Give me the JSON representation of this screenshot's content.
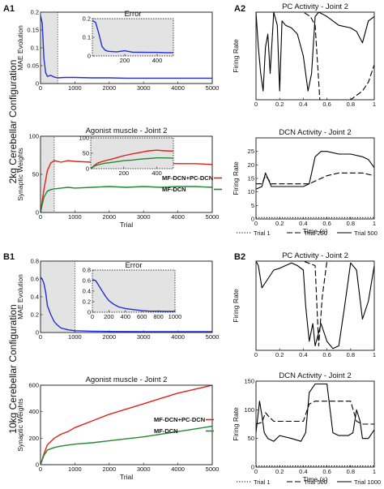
{
  "figure": {
    "labels": {
      "A1": "A1",
      "A2": "A2",
      "B1": "B1",
      "B2": "B2"
    },
    "configs": {
      "top": "2kg Cerebellar Configuration",
      "bottom": "10kg Cerebellar Configuration"
    }
  },
  "chart_data": [
    {
      "id": "A1-error",
      "type": "line",
      "title": "",
      "xlabel": "",
      "ylabel": "MAE Evolution",
      "xlim": [
        0,
        5000
      ],
      "ylim": [
        0,
        0.2
      ],
      "xticks": [
        0,
        1000,
        2000,
        3000,
        4000,
        5000
      ],
      "yticks": [
        0,
        0.05,
        0.1,
        0.15,
        0.2
      ],
      "highlight": [
        0,
        500
      ],
      "series": [
        {
          "name": "",
          "color": "#1f2fd6",
          "x": [
            0,
            50,
            100,
            150,
            200,
            300,
            400,
            500,
            700,
            1000,
            1500,
            2000,
            2500,
            3000,
            3500,
            4000,
            4500,
            5000
          ],
          "y": [
            0.19,
            0.17,
            0.07,
            0.03,
            0.02,
            0.023,
            0.018,
            0.016,
            0.017,
            0.017,
            0.016,
            0.016,
            0.015,
            0.015,
            0.015,
            0.015,
            0.015,
            0.015
          ]
        }
      ]
    },
    {
      "id": "A1-error-inset",
      "type": "line",
      "title": "Error",
      "xlim": [
        0,
        500
      ],
      "ylim": [
        0,
        0.2
      ],
      "xticks": [
        200,
        400
      ],
      "yticks": [
        0,
        0.1,
        0.2
      ],
      "series": [
        {
          "name": "",
          "color": "#1f2fd6",
          "x": [
            0,
            20,
            40,
            60,
            80,
            100,
            150,
            200,
            250,
            300,
            350,
            400,
            450,
            500
          ],
          "y": [
            0.19,
            0.18,
            0.12,
            0.05,
            0.03,
            0.025,
            0.022,
            0.028,
            0.02,
            0.02,
            0.019,
            0.019,
            0.018,
            0.018
          ]
        }
      ]
    },
    {
      "id": "A1-weights",
      "type": "line",
      "title": "Agonist muscle  - Joint 2",
      "xlabel": "Trial",
      "ylabel": "Synaptic Weights",
      "xlim": [
        0,
        5000
      ],
      "ylim": [
        0,
        100
      ],
      "xticks": [
        0,
        1000,
        2000,
        3000,
        4000,
        5000
      ],
      "yticks": [
        0,
        50,
        100
      ],
      "highlight": [
        0,
        400
      ],
      "series": [
        {
          "name": "MF-DCN+PC-DCN",
          "color": "#e0201b",
          "x": [
            0,
            100,
            200,
            300,
            400,
            600,
            800,
            1000,
            1500,
            2000,
            2500,
            3000,
            3500,
            4000,
            4500,
            5000
          ],
          "y": [
            0,
            30,
            55,
            65,
            68,
            66,
            68,
            67,
            66,
            66,
            67,
            66,
            65,
            64,
            64,
            63
          ]
        },
        {
          "name": "MF-DCN",
          "color": "#1f8a2f",
          "x": [
            0,
            100,
            200,
            300,
            400,
            600,
            800,
            1000,
            1500,
            2000,
            2500,
            3000,
            3500,
            4000,
            4500,
            5000
          ],
          "y": [
            0,
            20,
            28,
            30,
            31,
            32,
            33,
            32,
            33,
            34,
            33,
            34,
            33,
            34,
            34,
            33
          ]
        }
      ]
    },
    {
      "id": "A1-weights-inset",
      "type": "line",
      "xlim": [
        0,
        500
      ],
      "ylim": [
        0,
        100
      ],
      "xticks": [
        200,
        400
      ],
      "yticks": [
        0,
        50,
        100
      ],
      "series": [
        {
          "name": "",
          "color": "#e0201b",
          "x": [
            0,
            20,
            40,
            80,
            120,
            160,
            200,
            250,
            300,
            350,
            400,
            450,
            500
          ],
          "y": [
            0,
            10,
            18,
            25,
            30,
            36,
            42,
            48,
            53,
            58,
            60,
            58,
            57
          ]
        },
        {
          "name": "",
          "color": "#1f8a2f",
          "x": [
            0,
            20,
            40,
            80,
            120,
            160,
            200,
            250,
            300,
            350,
            400,
            450,
            500
          ],
          "y": [
            0,
            8,
            12,
            17,
            20,
            23,
            26,
            28,
            31,
            33,
            35,
            35,
            34
          ]
        }
      ]
    },
    {
      "id": "A2-pc",
      "type": "line",
      "title": "PC Activity - Joint 2",
      "ylabel": "Firing Rate",
      "xlim": [
        0,
        1
      ],
      "ylim": [
        0,
        1
      ],
      "xticks": [
        0,
        0.2,
        0.4,
        0.6,
        0.8,
        1
      ],
      "yticks": [],
      "series": [
        {
          "name": "Trial 1",
          "color": "#000",
          "dash": "1.2,2",
          "x": [
            0,
            1
          ],
          "y": [
            1,
            1
          ]
        },
        {
          "name": "Trial 250",
          "color": "#000",
          "dash": "7,3",
          "x": [
            0,
            0.1,
            0.18,
            0.22,
            0.3,
            0.4,
            0.46,
            0.5,
            0.54,
            0.6,
            0.7,
            0.8,
            0.9,
            0.95,
            1
          ],
          "y": [
            1,
            1,
            1,
            1,
            1,
            1,
            0.95,
            0.85,
            0,
            0,
            0,
            0,
            0.1,
            0.2,
            0.4
          ]
        },
        {
          "name": "Trial 500",
          "color": "#000",
          "dash": "",
          "x": [
            0,
            0.02,
            0.04,
            0.06,
            0.08,
            0.1,
            0.12,
            0.15,
            0.18,
            0.2,
            0.22,
            0.25,
            0.3,
            0.35,
            0.4,
            0.44,
            0.47,
            0.5,
            0.53,
            0.56,
            0.6,
            0.7,
            0.8,
            0.85,
            0.9,
            0.95,
            1
          ],
          "y": [
            1,
            0.6,
            0.3,
            0.1,
            0.6,
            0.75,
            0.3,
            1,
            0.85,
            0.1,
            0.9,
            0.85,
            0.82,
            0.75,
            0.5,
            0.1,
            0.3,
            0.95,
            1,
            0.98,
            0.95,
            0.85,
            0.82,
            0.78,
            0.65,
            0.9,
            0.95
          ]
        }
      ]
    },
    {
      "id": "A2-dcn",
      "type": "line",
      "title": "DCN Activity - Joint 2",
      "xlabel": "Time (s)",
      "ylabel": "Firing Rate",
      "xlim": [
        0,
        1
      ],
      "ylim": [
        0,
        30
      ],
      "xticks": [
        0,
        0.2,
        0.4,
        0.6,
        0.8,
        1
      ],
      "yticks": [
        0,
        5,
        10,
        15,
        20,
        25
      ],
      "series": [
        {
          "name": "Trial 1",
          "color": "#000",
          "dash": "1.2,2",
          "x": [
            0,
            1
          ],
          "y": [
            0.5,
            0.5
          ]
        },
        {
          "name": "Trial 250",
          "color": "#000",
          "dash": "7,3",
          "x": [
            0,
            0.05,
            0.08,
            0.1,
            0.13,
            0.2,
            0.3,
            0.4,
            0.45,
            0.5,
            0.6,
            0.7,
            0.8,
            0.9,
            1
          ],
          "y": [
            13,
            13,
            16,
            15,
            13,
            13,
            13,
            13,
            13,
            14,
            16,
            17,
            17,
            17,
            16
          ]
        },
        {
          "name": "Trial 500",
          "color": "#000",
          "dash": "",
          "x": [
            0,
            0.05,
            0.08,
            0.1,
            0.13,
            0.2,
            0.3,
            0.4,
            0.45,
            0.5,
            0.55,
            0.6,
            0.7,
            0.8,
            0.9,
            0.95,
            1
          ],
          "y": [
            11,
            12,
            17,
            15,
            12,
            12,
            12,
            12,
            13,
            23,
            25,
            25,
            24,
            24,
            23,
            22,
            19
          ]
        }
      ]
    },
    {
      "id": "B1-error",
      "type": "line",
      "title": "",
      "ylabel": "MAE Evolution",
      "xlim": [
        0,
        5000
      ],
      "ylim": [
        0,
        0.8
      ],
      "xticks": [
        0,
        1000,
        2000,
        3000,
        4000,
        5000
      ],
      "yticks": [
        0,
        0.2,
        0.4,
        0.6,
        0.8
      ],
      "highlight": [
        0,
        1000
      ],
      "series": [
        {
          "name": "",
          "color": "#1f2fd6",
          "x": [
            0,
            50,
            100,
            150,
            200,
            300,
            400,
            500,
            600,
            800,
            1000,
            1500,
            2000,
            3000,
            4000,
            5000
          ],
          "y": [
            0.62,
            0.6,
            0.55,
            0.45,
            0.3,
            0.2,
            0.12,
            0.08,
            0.05,
            0.03,
            0.02,
            0.015,
            0.012,
            0.01,
            0.01,
            0.01
          ]
        }
      ]
    },
    {
      "id": "B1-error-inset",
      "type": "line",
      "title": "Error",
      "xlim": [
        0,
        1000
      ],
      "ylim": [
        0,
        0.8
      ],
      "xticks": [
        0,
        200,
        400,
        600,
        800,
        1000
      ],
      "yticks": [
        0,
        0.2,
        0.4,
        0.6,
        0.8
      ],
      "series": [
        {
          "name": "",
          "color": "#1f2fd6",
          "x": [
            0,
            40,
            80,
            120,
            160,
            200,
            260,
            320,
            400,
            500,
            600,
            700,
            800,
            900,
            1000
          ],
          "y": [
            0.62,
            0.6,
            0.5,
            0.4,
            0.3,
            0.22,
            0.15,
            0.1,
            0.07,
            0.05,
            0.03,
            0.02,
            0.02,
            0.015,
            0.015
          ]
        }
      ]
    },
    {
      "id": "B1-weights",
      "type": "line",
      "title": "Agonist muscle  - Joint 2",
      "xlabel": "Trial",
      "ylabel": "Synaptic Weights",
      "xlim": [
        0,
        5000
      ],
      "ylim": [
        0,
        600
      ],
      "xticks": [
        0,
        1000,
        2000,
        3000,
        4000,
        5000
      ],
      "yticks": [
        0,
        200,
        400,
        600
      ],
      "series": [
        {
          "name": "MF-DCN+PC-DCN",
          "color": "#e0201b",
          "x": [
            0,
            100,
            200,
            400,
            600,
            800,
            1000,
            1500,
            2000,
            2500,
            3000,
            3500,
            4000,
            4500,
            5000
          ],
          "y": [
            0,
            80,
            150,
            200,
            230,
            250,
            280,
            330,
            380,
            420,
            460,
            500,
            540,
            570,
            600
          ]
        },
        {
          "name": "MF-DCN",
          "color": "#1f8a2f",
          "x": [
            0,
            100,
            200,
            400,
            600,
            800,
            1000,
            1500,
            2000,
            2500,
            3000,
            3500,
            4000,
            4500,
            5000
          ],
          "y": [
            0,
            70,
            110,
            130,
            140,
            148,
            155,
            165,
            180,
            195,
            210,
            230,
            250,
            270,
            290
          ]
        }
      ]
    },
    {
      "id": "B2-pc",
      "type": "line",
      "title": "PC Activity - Joint 2",
      "ylabel": "Firing Rate",
      "xlim": [
        0,
        1
      ],
      "ylim": [
        0,
        1
      ],
      "xticks": [
        0,
        0.2,
        0.4,
        0.6,
        0.8,
        1
      ],
      "yticks": [],
      "series": [
        {
          "name": "Trial 1",
          "color": "#000",
          "dash": "1.2,2",
          "x": [
            0,
            1
          ],
          "y": [
            1,
            1
          ]
        },
        {
          "name": "Trial 500",
          "color": "#000",
          "dash": "7,3",
          "x": [
            0,
            0.1,
            0.2,
            0.3,
            0.4,
            0.5,
            0.53,
            0.56,
            0.6,
            0.7,
            0.8,
            0.9,
            1
          ],
          "y": [
            1,
            1,
            1,
            1,
            1,
            0.95,
            0.05,
            0.6,
            1,
            1,
            1,
            1,
            1
          ]
        },
        {
          "name": "Trial 1000",
          "color": "#000",
          "dash": "",
          "x": [
            0,
            0.02,
            0.05,
            0.1,
            0.15,
            0.2,
            0.25,
            0.3,
            0.35,
            0.4,
            0.42,
            0.45,
            0.48,
            0.5,
            0.55,
            0.6,
            0.65,
            0.7,
            0.75,
            0.8,
            0.85,
            0.9,
            0.95,
            1
          ],
          "y": [
            1,
            0.95,
            0.7,
            0.8,
            0.9,
            0.92,
            0.95,
            0.98,
            0.95,
            0.9,
            0.5,
            0.1,
            0.3,
            0.05,
            0.3,
            0.1,
            0.02,
            0.05,
            0.5,
            0.98,
            0.9,
            0.35,
            0.55,
            0.95
          ]
        }
      ]
    },
    {
      "id": "B2-dcn",
      "type": "line",
      "title": "DCN Activity - Joint 2",
      "xlabel": "Time (s)",
      "ylabel": "Firing Rate",
      "xlim": [
        0,
        1
      ],
      "ylim": [
        0,
        150
      ],
      "xticks": [
        0,
        0.2,
        0.4,
        0.6,
        0.8,
        1
      ],
      "yticks": [
        0,
        50,
        100,
        150
      ],
      "series": [
        {
          "name": "Trial 1",
          "color": "#000",
          "dash": "1.2,2",
          "x": [
            0,
            1
          ],
          "y": [
            2,
            2
          ]
        },
        {
          "name": "Trial 500",
          "color": "#000",
          "dash": "7,3",
          "x": [
            0,
            0.05,
            0.08,
            0.1,
            0.15,
            0.2,
            0.3,
            0.4,
            0.45,
            0.5,
            0.6,
            0.7,
            0.8,
            0.85,
            0.9,
            1
          ],
          "y": [
            75,
            78,
            95,
            90,
            80,
            80,
            80,
            80,
            110,
            115,
            115,
            115,
            115,
            80,
            75,
            75
          ]
        },
        {
          "name": "Trial 1000",
          "color": "#000",
          "dash": "",
          "x": [
            0,
            0.03,
            0.05,
            0.07,
            0.1,
            0.15,
            0.2,
            0.3,
            0.38,
            0.42,
            0.45,
            0.5,
            0.55,
            0.6,
            0.65,
            0.7,
            0.78,
            0.82,
            0.85,
            0.88,
            0.9,
            0.95,
            1
          ],
          "y": [
            60,
            115,
            90,
            60,
            50,
            45,
            55,
            50,
            45,
            60,
            130,
            145,
            145,
            145,
            60,
            55,
            55,
            60,
            100,
            80,
            50,
            50,
            65
          ]
        }
      ]
    }
  ]
}
